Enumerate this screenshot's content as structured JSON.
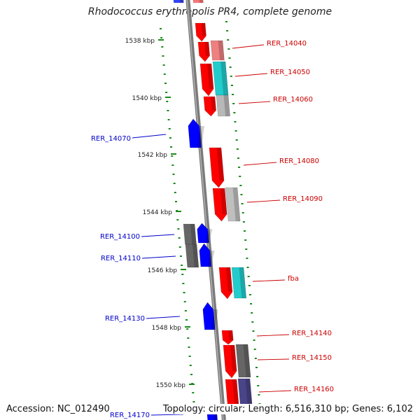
{
  "title": "Rhodococcus erythropolis PR4, complete genome",
  "footer": {
    "accession": "Accession: NC_012490",
    "topology": "Topology: circular; Length: 6,516,310 bp; Genes: 6,102"
  },
  "colors": {
    "forward": "#ff0000",
    "reverse": "#0000ff",
    "backbone": "#888888",
    "tick": "#1a8a1a",
    "label_forward": "#cc0000",
    "label_reverse": "#0000cc"
  },
  "scale_labels": [
    "1538 kbp",
    "1540 kbp",
    "1542 kbp",
    "1544 kbp",
    "1546 kbp",
    "1548 kbp",
    "1550 kbp"
  ],
  "gene_labels": [
    {
      "text": "RER_14040",
      "strand": "+"
    },
    {
      "text": "RER_14050",
      "strand": "+"
    },
    {
      "text": "RER_14060",
      "strand": "+"
    },
    {
      "text": "RER_14070",
      "strand": "-"
    },
    {
      "text": "RER_14080",
      "strand": "+"
    },
    {
      "text": "RER_14090",
      "strand": "+"
    },
    {
      "text": "RER_14100",
      "strand": "-"
    },
    {
      "text": "RER_14110",
      "strand": "-"
    },
    {
      "text": "fba",
      "strand": "+"
    },
    {
      "text": "RER_14130",
      "strand": "-"
    },
    {
      "text": "RER_14140",
      "strand": "+"
    },
    {
      "text": "RER_14150",
      "strand": "+"
    },
    {
      "text": "RER_14160",
      "strand": "+"
    },
    {
      "text": "RER_14170",
      "strand": "-"
    }
  ]
}
